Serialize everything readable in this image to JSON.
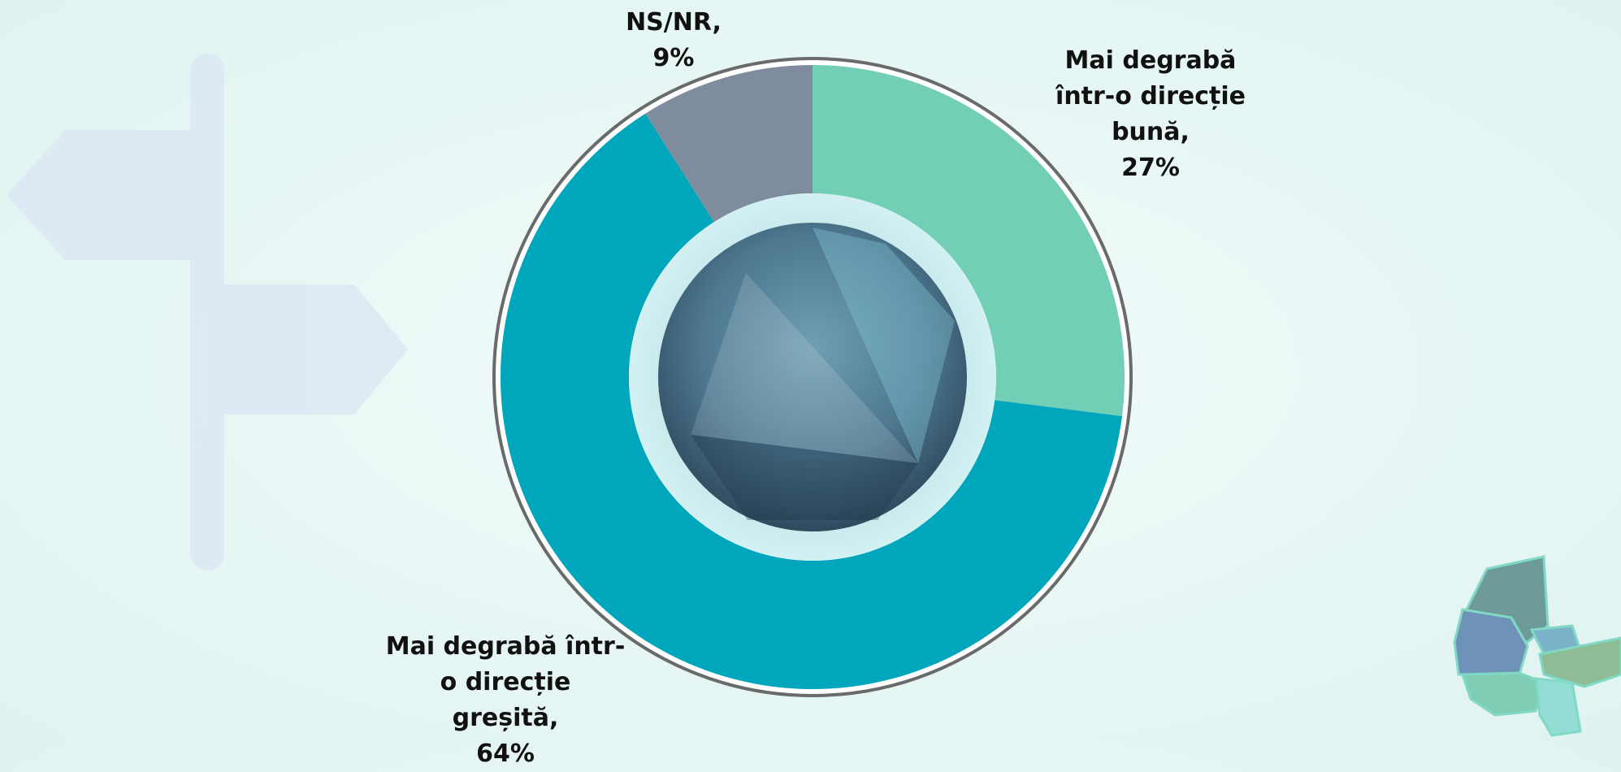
{
  "chart_data": {
    "type": "donut",
    "categories": [
      "Mai degrabă într-o direcție bună,",
      "Mai degrabă într-o direcție greșită,",
      "NS/NR,"
    ],
    "values": [
      27,
      64,
      9
    ],
    "value_labels": [
      "27%",
      "64%",
      "9%"
    ],
    "colors": [
      "#72cfb5",
      "#00a6bb",
      "#7f8c9e"
    ]
  }
}
